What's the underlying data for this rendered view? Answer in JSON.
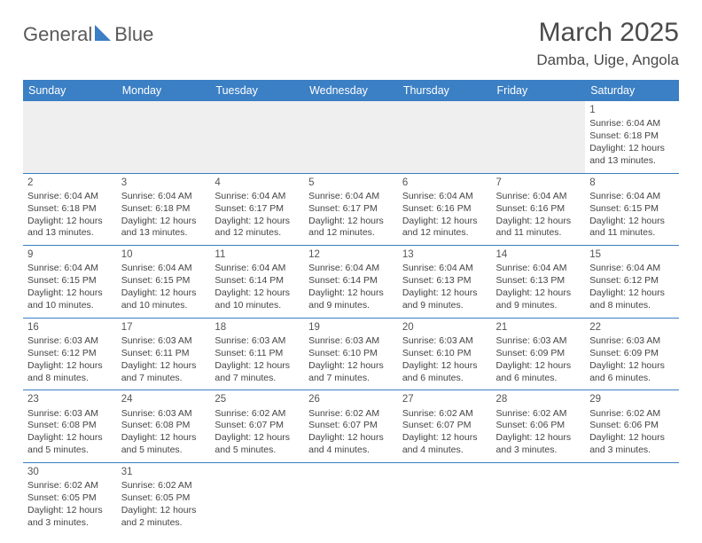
{
  "logo": {
    "text1": "General",
    "text2": "Blue"
  },
  "title": "March 2025",
  "location": "Damba, Uige, Angola",
  "colors": {
    "header_bg": "#3b7fc4",
    "header_fg": "#ffffff",
    "row_border": "#3b7fc4",
    "empty_bg": "#efefef",
    "text": "#444444"
  },
  "days": [
    "Sunday",
    "Monday",
    "Tuesday",
    "Wednesday",
    "Thursday",
    "Friday",
    "Saturday"
  ],
  "weeks": [
    [
      null,
      null,
      null,
      null,
      null,
      null,
      {
        "n": "1",
        "sr": "6:04 AM",
        "ss": "6:18 PM",
        "dl": "12 hours and 13 minutes."
      }
    ],
    [
      {
        "n": "2",
        "sr": "6:04 AM",
        "ss": "6:18 PM",
        "dl": "12 hours and 13 minutes."
      },
      {
        "n": "3",
        "sr": "6:04 AM",
        "ss": "6:18 PM",
        "dl": "12 hours and 13 minutes."
      },
      {
        "n": "4",
        "sr": "6:04 AM",
        "ss": "6:17 PM",
        "dl": "12 hours and 12 minutes."
      },
      {
        "n": "5",
        "sr": "6:04 AM",
        "ss": "6:17 PM",
        "dl": "12 hours and 12 minutes."
      },
      {
        "n": "6",
        "sr": "6:04 AM",
        "ss": "6:16 PM",
        "dl": "12 hours and 12 minutes."
      },
      {
        "n": "7",
        "sr": "6:04 AM",
        "ss": "6:16 PM",
        "dl": "12 hours and 11 minutes."
      },
      {
        "n": "8",
        "sr": "6:04 AM",
        "ss": "6:15 PM",
        "dl": "12 hours and 11 minutes."
      }
    ],
    [
      {
        "n": "9",
        "sr": "6:04 AM",
        "ss": "6:15 PM",
        "dl": "12 hours and 10 minutes."
      },
      {
        "n": "10",
        "sr": "6:04 AM",
        "ss": "6:15 PM",
        "dl": "12 hours and 10 minutes."
      },
      {
        "n": "11",
        "sr": "6:04 AM",
        "ss": "6:14 PM",
        "dl": "12 hours and 10 minutes."
      },
      {
        "n": "12",
        "sr": "6:04 AM",
        "ss": "6:14 PM",
        "dl": "12 hours and 9 minutes."
      },
      {
        "n": "13",
        "sr": "6:04 AM",
        "ss": "6:13 PM",
        "dl": "12 hours and 9 minutes."
      },
      {
        "n": "14",
        "sr": "6:04 AM",
        "ss": "6:13 PM",
        "dl": "12 hours and 9 minutes."
      },
      {
        "n": "15",
        "sr": "6:04 AM",
        "ss": "6:12 PM",
        "dl": "12 hours and 8 minutes."
      }
    ],
    [
      {
        "n": "16",
        "sr": "6:03 AM",
        "ss": "6:12 PM",
        "dl": "12 hours and 8 minutes."
      },
      {
        "n": "17",
        "sr": "6:03 AM",
        "ss": "6:11 PM",
        "dl": "12 hours and 7 minutes."
      },
      {
        "n": "18",
        "sr": "6:03 AM",
        "ss": "6:11 PM",
        "dl": "12 hours and 7 minutes."
      },
      {
        "n": "19",
        "sr": "6:03 AM",
        "ss": "6:10 PM",
        "dl": "12 hours and 7 minutes."
      },
      {
        "n": "20",
        "sr": "6:03 AM",
        "ss": "6:10 PM",
        "dl": "12 hours and 6 minutes."
      },
      {
        "n": "21",
        "sr": "6:03 AM",
        "ss": "6:09 PM",
        "dl": "12 hours and 6 minutes."
      },
      {
        "n": "22",
        "sr": "6:03 AM",
        "ss": "6:09 PM",
        "dl": "12 hours and 6 minutes."
      }
    ],
    [
      {
        "n": "23",
        "sr": "6:03 AM",
        "ss": "6:08 PM",
        "dl": "12 hours and 5 minutes."
      },
      {
        "n": "24",
        "sr": "6:03 AM",
        "ss": "6:08 PM",
        "dl": "12 hours and 5 minutes."
      },
      {
        "n": "25",
        "sr": "6:02 AM",
        "ss": "6:07 PM",
        "dl": "12 hours and 5 minutes."
      },
      {
        "n": "26",
        "sr": "6:02 AM",
        "ss": "6:07 PM",
        "dl": "12 hours and 4 minutes."
      },
      {
        "n": "27",
        "sr": "6:02 AM",
        "ss": "6:07 PM",
        "dl": "12 hours and 4 minutes."
      },
      {
        "n": "28",
        "sr": "6:02 AM",
        "ss": "6:06 PM",
        "dl": "12 hours and 3 minutes."
      },
      {
        "n": "29",
        "sr": "6:02 AM",
        "ss": "6:06 PM",
        "dl": "12 hours and 3 minutes."
      }
    ],
    [
      {
        "n": "30",
        "sr": "6:02 AM",
        "ss": "6:05 PM",
        "dl": "12 hours and 3 minutes."
      },
      {
        "n": "31",
        "sr": "6:02 AM",
        "ss": "6:05 PM",
        "dl": "12 hours and 2 minutes."
      },
      null,
      null,
      null,
      null,
      null
    ]
  ],
  "labels": {
    "sunrise": "Sunrise:",
    "sunset": "Sunset:",
    "daylight": "Daylight:"
  }
}
